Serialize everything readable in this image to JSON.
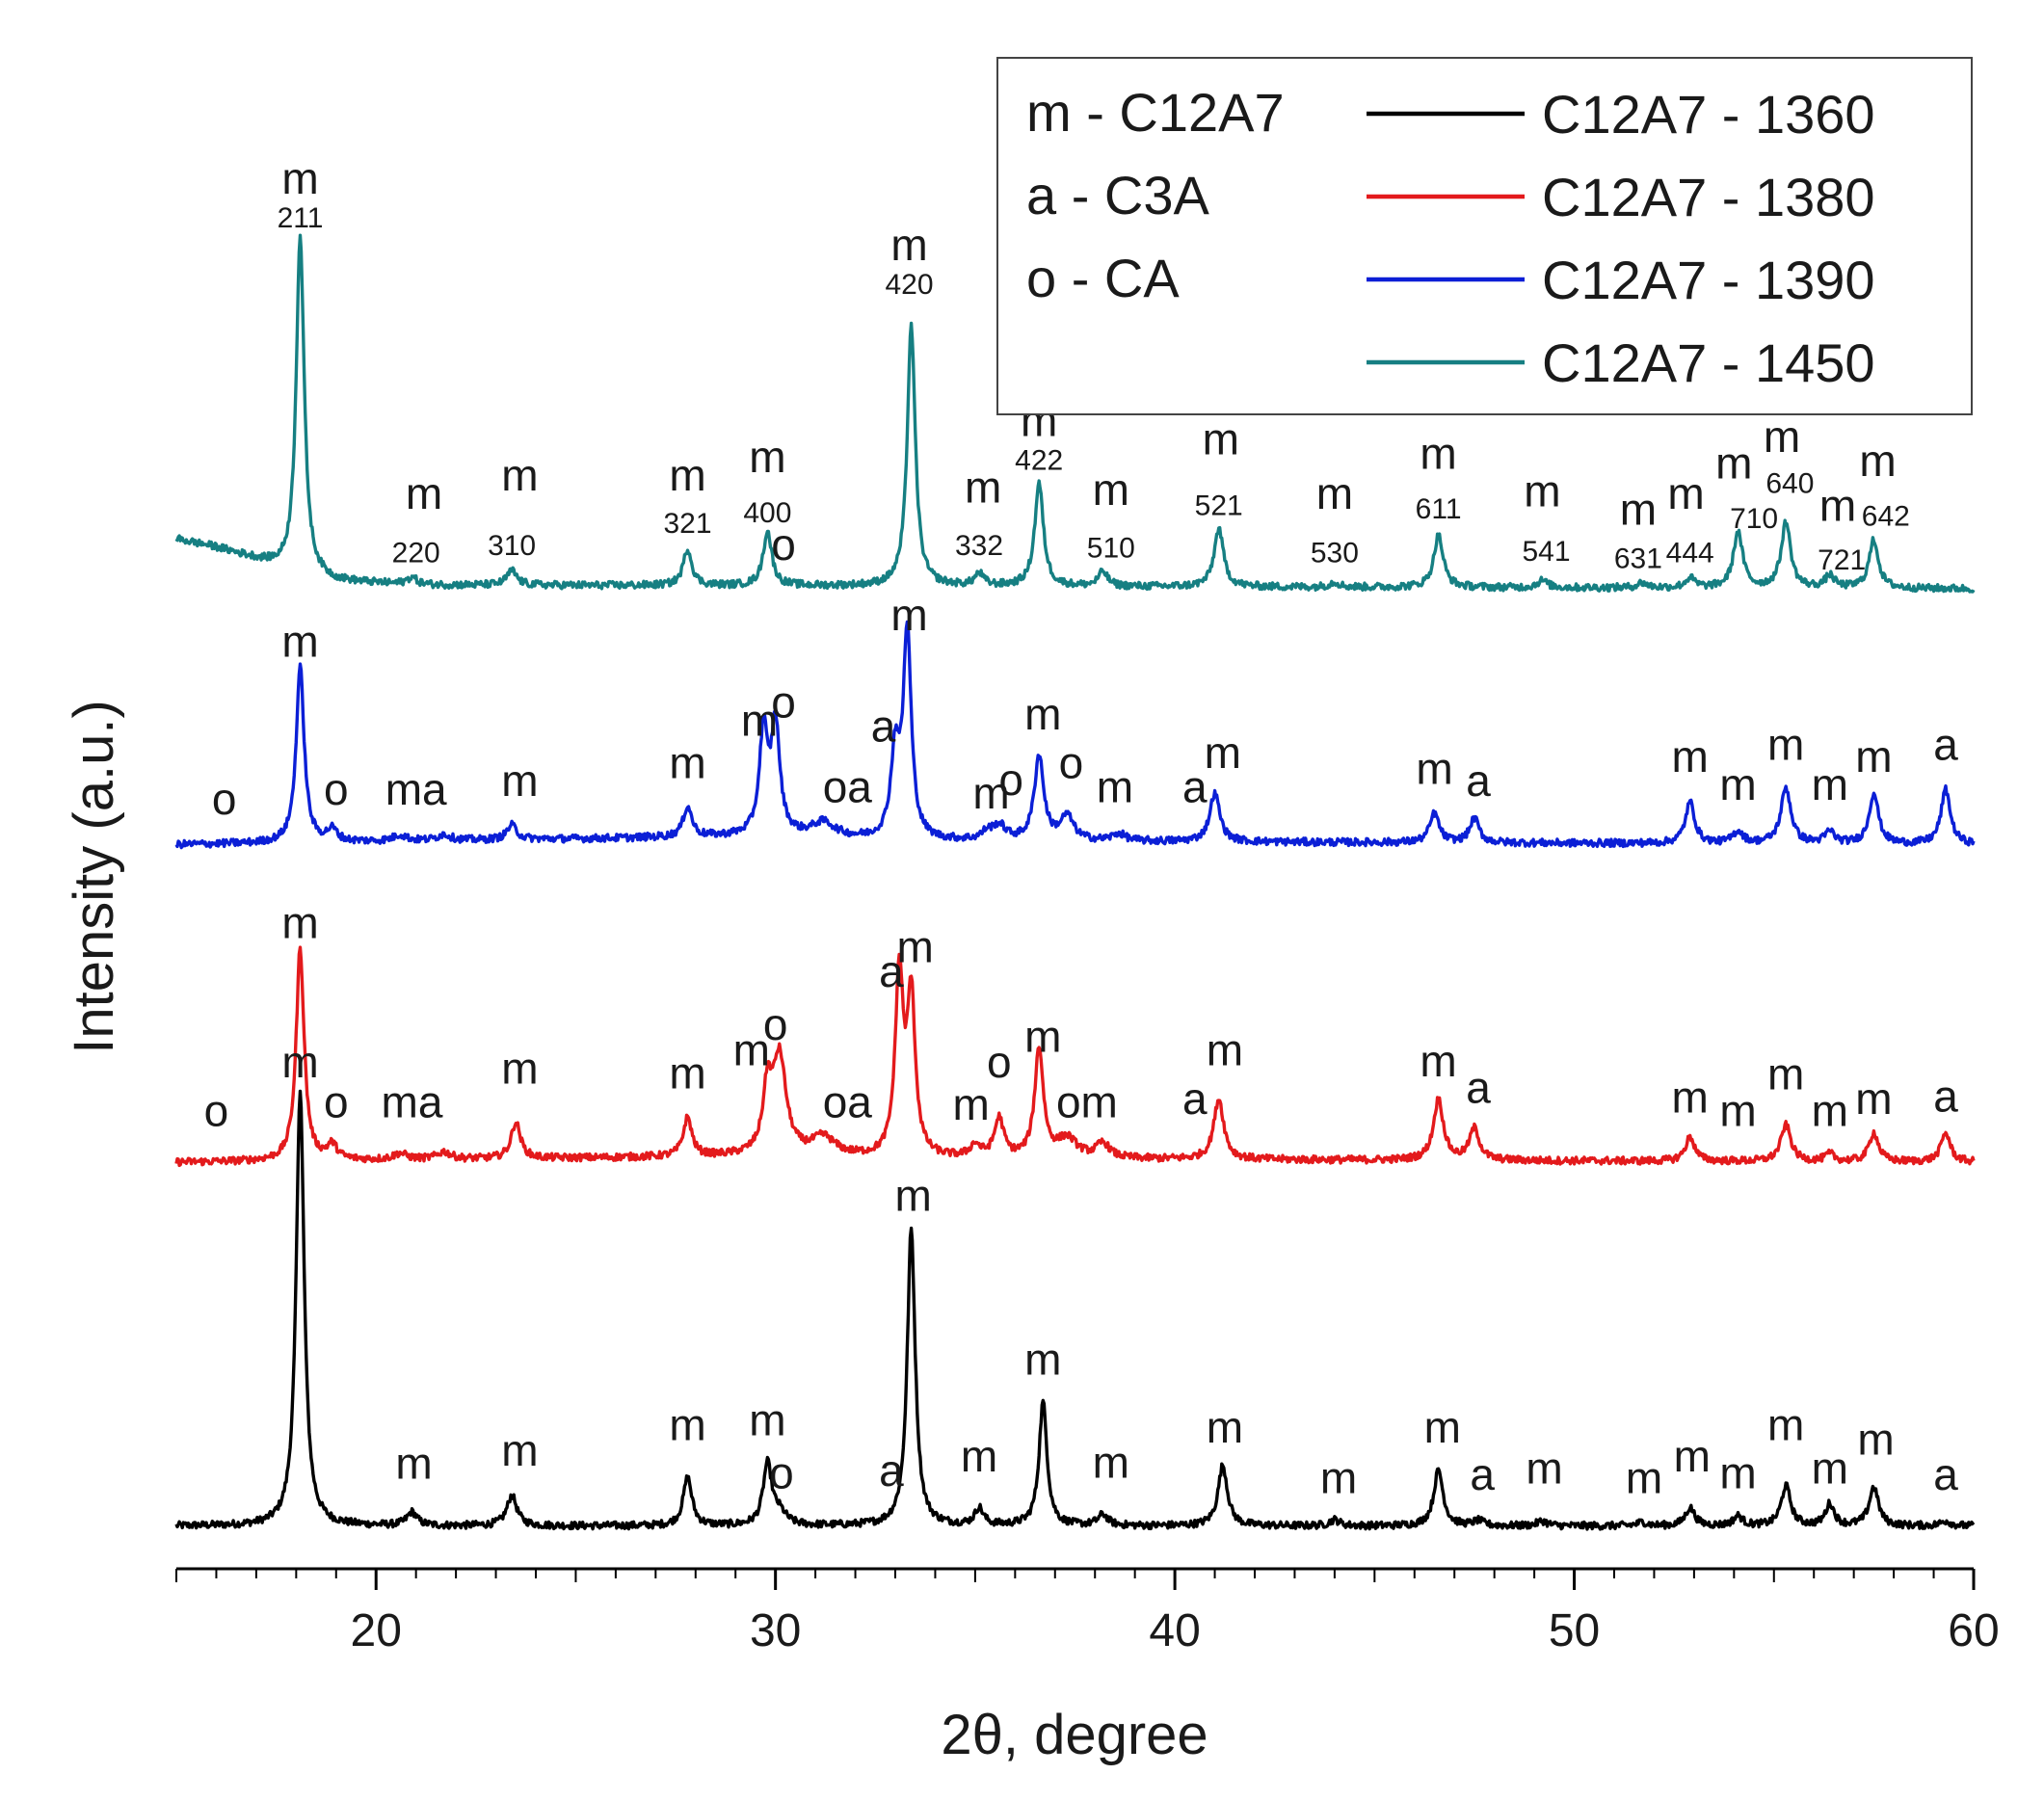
{
  "chart_data": {
    "type": "line",
    "title": "",
    "xlabel": "2θ, degree",
    "ylabel": "Intensity (a.u.)",
    "xlim": [
      15,
      60
    ],
    "x_ticks": [
      20,
      30,
      40,
      50,
      60
    ],
    "ylim": [
      0,
      1.2
    ],
    "grid": false,
    "legend_placement": "top-right",
    "phase_legend": [
      "m - C12A7",
      "a - C3A",
      "o - CA"
    ],
    "series": [
      {
        "name": "C12A7 - 1360",
        "color": "#000000",
        "offset": 0,
        "background": [
          [
            15,
            0.005
          ],
          [
            60,
            0.005
          ]
        ],
        "peaks": [
          [
            18.1,
            0.36,
            0.12
          ],
          [
            20.9,
            0.011,
            0.15
          ],
          [
            23.4,
            0.025,
            0.15
          ],
          [
            27.8,
            0.04,
            0.13
          ],
          [
            29.8,
            0.05,
            0.13
          ],
          [
            30.1,
            0.01,
            0.2
          ],
          [
            33.4,
            0.245,
            0.12
          ],
          [
            35.1,
            0.014,
            0.13
          ],
          [
            36.7,
            0.102,
            0.12
          ],
          [
            38.2,
            0.009,
            0.15
          ],
          [
            41.2,
            0.05,
            0.14
          ],
          [
            44.0,
            0.005,
            0.15
          ],
          [
            46.6,
            0.046,
            0.14
          ],
          [
            47.6,
            0.004,
            0.15
          ],
          [
            49.2,
            0.004,
            0.15
          ],
          [
            51.7,
            0.003,
            0.15
          ],
          [
            52.9,
            0.015,
            0.14
          ],
          [
            54.1,
            0.008,
            0.14
          ],
          [
            55.3,
            0.033,
            0.14
          ],
          [
            56.4,
            0.018,
            0.13
          ],
          [
            57.5,
            0.032,
            0.14
          ],
          [
            59.3,
            0.004,
            0.15
          ]
        ],
        "labels": [
          [
            "m",
            18.1,
            0.375
          ],
          [
            "m",
            20.95,
            0.044
          ],
          [
            "m",
            23.6,
            0.055
          ],
          [
            "m",
            27.8,
            0.076
          ],
          [
            "m",
            29.8,
            0.08
          ],
          [
            "o",
            30.15,
            0.036
          ],
          [
            "a",
            32.9,
            0.038
          ],
          [
            "m",
            33.45,
            0.265
          ],
          [
            "m",
            35.1,
            0.05
          ],
          [
            "m",
            36.7,
            0.13
          ],
          [
            "m",
            38.4,
            0.045
          ],
          [
            "m",
            41.25,
            0.074
          ],
          [
            "m",
            44.1,
            0.032
          ],
          [
            "m",
            46.7,
            0.074
          ],
          [
            "a",
            47.7,
            0.035
          ],
          [
            "m",
            49.25,
            0.04
          ],
          [
            "m",
            51.75,
            0.032
          ],
          [
            "m",
            52.95,
            0.05
          ],
          [
            "m",
            54.1,
            0.036
          ],
          [
            "m",
            55.3,
            0.076
          ],
          [
            "m",
            56.4,
            0.04
          ],
          [
            "m",
            57.55,
            0.064
          ],
          [
            "a",
            59.3,
            0.035
          ]
        ]
      },
      {
        "name": "C12A7 - 1380",
        "color": "#e31a1c",
        "offset": 0.3,
        "background": [
          [
            15,
            0.005
          ],
          [
            30,
            0.01
          ],
          [
            33,
            0.008
          ],
          [
            60,
            0.005
          ]
        ],
        "peaks": [
          [
            18.1,
            0.175,
            0.12
          ],
          [
            18.9,
            0.012,
            0.15
          ],
          [
            20.6,
            0.005,
            0.2
          ],
          [
            21.7,
            0.006,
            0.2
          ],
          [
            23.5,
            0.03,
            0.14
          ],
          [
            27.8,
            0.032,
            0.13
          ],
          [
            29.8,
            0.05,
            0.13
          ],
          [
            30.1,
            0.08,
            0.2
          ],
          [
            31.2,
            0.015,
            0.35
          ],
          [
            33.1,
            0.15,
            0.12
          ],
          [
            33.4,
            0.13,
            0.12
          ],
          [
            35.0,
            0.01,
            0.15
          ],
          [
            35.6,
            0.032,
            0.14
          ],
          [
            36.6,
            0.09,
            0.13
          ],
          [
            37.3,
            0.016,
            0.3
          ],
          [
            38.2,
            0.012,
            0.2
          ],
          [
            41.1,
            0.05,
            0.15
          ],
          [
            46.6,
            0.05,
            0.15
          ],
          [
            47.5,
            0.026,
            0.15
          ],
          [
            52.9,
            0.02,
            0.14
          ],
          [
            55.3,
            0.03,
            0.15
          ],
          [
            56.4,
            0.006,
            0.14
          ],
          [
            57.5,
            0.024,
            0.14
          ],
          [
            59.3,
            0.024,
            0.14
          ]
        ],
        "labels": [
          [
            "o",
            16.0,
            0.035
          ],
          [
            "m",
            18.1,
            0.19
          ],
          [
            "o",
            19.0,
            0.042
          ],
          [
            "ma",
            20.9,
            0.042
          ],
          [
            "m",
            23.6,
            0.07
          ],
          [
            "m",
            27.8,
            0.066
          ],
          [
            "m",
            29.4,
            0.085
          ],
          [
            "o",
            30.0,
            0.106
          ],
          [
            "oa",
            31.8,
            0.042
          ],
          [
            "a",
            32.9,
            0.15
          ],
          [
            "m",
            33.5,
            0.17
          ],
          [
            "m",
            34.9,
            0.04
          ],
          [
            "o",
            35.6,
            0.075
          ],
          [
            "m",
            36.7,
            0.096
          ],
          [
            "om",
            37.8,
            0.042
          ],
          [
            "a",
            40.5,
            0.045
          ],
          [
            "m",
            41.25,
            0.085
          ],
          [
            "m",
            46.6,
            0.076
          ],
          [
            "a",
            47.6,
            0.054
          ],
          [
            "m",
            52.9,
            0.046
          ],
          [
            "m",
            54.1,
            0.035
          ],
          [
            "m",
            55.3,
            0.065
          ],
          [
            "m",
            56.4,
            0.035
          ],
          [
            "m",
            57.5,
            0.045
          ],
          [
            "a",
            59.3,
            0.047
          ]
        ]
      },
      {
        "name": "C12A7 - 1390",
        "color": "#0b1fd6",
        "offset": 0.562,
        "background": [
          [
            15,
            0.005
          ],
          [
            30,
            0.012
          ],
          [
            33,
            0.008
          ],
          [
            60,
            0.005
          ]
        ],
        "peaks": [
          [
            18.1,
            0.145,
            0.12
          ],
          [
            18.9,
            0.01,
            0.15
          ],
          [
            20.6,
            0.005,
            0.2
          ],
          [
            21.7,
            0.005,
            0.2
          ],
          [
            23.4,
            0.012,
            0.15
          ],
          [
            27.8,
            0.025,
            0.13
          ],
          [
            29.7,
            0.085,
            0.12
          ],
          [
            30.0,
            0.09,
            0.13
          ],
          [
            31.2,
            0.012,
            0.35
          ],
          [
            33.0,
            0.07,
            0.13
          ],
          [
            33.3,
            0.17,
            0.12
          ],
          [
            35.3,
            0.006,
            0.15
          ],
          [
            35.6,
            0.012,
            0.2
          ],
          [
            36.6,
            0.07,
            0.14
          ],
          [
            37.3,
            0.02,
            0.2
          ],
          [
            38.6,
            0.006,
            0.2
          ],
          [
            41.0,
            0.04,
            0.15
          ],
          [
            46.5,
            0.024,
            0.14
          ],
          [
            47.5,
            0.02,
            0.14
          ],
          [
            52.9,
            0.034,
            0.14
          ],
          [
            54.1,
            0.01,
            0.15
          ],
          [
            55.3,
            0.046,
            0.15
          ],
          [
            56.4,
            0.01,
            0.14
          ],
          [
            57.5,
            0.042,
            0.14
          ],
          [
            59.3,
            0.045,
            0.14
          ]
        ],
        "labels": [
          [
            "o",
            16.2,
            0.03
          ],
          [
            "m",
            18.1,
            0.16
          ],
          [
            "o",
            19.0,
            0.038
          ],
          [
            "ma",
            21.0,
            0.038
          ],
          [
            "m",
            23.6,
            0.045
          ],
          [
            "m",
            27.8,
            0.06
          ],
          [
            "m",
            29.6,
            0.095
          ],
          [
            "o",
            30.2,
            0.11
          ],
          [
            "oa",
            31.8,
            0.04
          ],
          [
            "a",
            32.7,
            0.09
          ],
          [
            "m",
            33.35,
            0.182
          ],
          [
            "m",
            35.4,
            0.035
          ],
          [
            "o",
            35.9,
            0.046
          ],
          [
            "m",
            36.7,
            0.1
          ],
          [
            "o",
            37.4,
            0.06
          ],
          [
            "m",
            38.5,
            0.04
          ],
          [
            "a",
            40.5,
            0.04
          ],
          [
            "m",
            41.2,
            0.068
          ],
          [
            "m",
            46.5,
            0.055
          ],
          [
            "a",
            47.6,
            0.045
          ],
          [
            "m",
            52.9,
            0.065
          ],
          [
            "m",
            54.1,
            0.042
          ],
          [
            "m",
            55.3,
            0.075
          ],
          [
            "m",
            56.4,
            0.042
          ],
          [
            "m",
            57.5,
            0.065
          ],
          [
            "a",
            59.3,
            0.075
          ]
        ]
      },
      {
        "name": "C12A7 - 1450",
        "color": "#167f82",
        "offset": 0.774,
        "background": [
          [
            15,
            0.045
          ],
          [
            16,
            0.038
          ],
          [
            17,
            0.028
          ],
          [
            18,
            0.016
          ],
          [
            19,
            0.01
          ],
          [
            21,
            0.007
          ],
          [
            60,
            0.004
          ]
        ],
        "peaks": [
          [
            18.1,
            0.28,
            0.12
          ],
          [
            20.9,
            0.006,
            0.15
          ],
          [
            23.4,
            0.012,
            0.15
          ],
          [
            27.8,
            0.03,
            0.13
          ],
          [
            29.8,
            0.045,
            0.13
          ],
          [
            33.4,
            0.215,
            0.12
          ],
          [
            35.1,
            0.01,
            0.13
          ],
          [
            36.6,
            0.085,
            0.13
          ],
          [
            38.2,
            0.012,
            0.14
          ],
          [
            41.1,
            0.048,
            0.14
          ],
          [
            44.0,
            0.004,
            0.15
          ],
          [
            46.6,
            0.043,
            0.14
          ],
          [
            49.2,
            0.006,
            0.15
          ],
          [
            51.7,
            0.004,
            0.15
          ],
          [
            52.9,
            0.008,
            0.14
          ],
          [
            54.1,
            0.046,
            0.14
          ],
          [
            55.3,
            0.054,
            0.14
          ],
          [
            56.4,
            0.01,
            0.14
          ],
          [
            57.5,
            0.04,
            0.14
          ]
        ],
        "labels": [
          [
            "m",
            18.1,
            0.33
          ],
          [
            "m",
            21.2,
            0.07
          ],
          [
            "m",
            23.6,
            0.085
          ],
          [
            "m",
            27.8,
            0.085
          ],
          [
            "m",
            29.8,
            0.1
          ],
          [
            "o",
            30.2,
            0.028
          ],
          [
            "m",
            33.35,
            0.275
          ],
          [
            "m",
            35.2,
            0.075
          ],
          [
            "m",
            36.6,
            0.13
          ],
          [
            "m",
            38.4,
            0.073
          ],
          [
            "m",
            41.15,
            0.115
          ],
          [
            "m",
            44.0,
            0.07
          ],
          [
            "m",
            46.6,
            0.103
          ],
          [
            "m",
            49.2,
            0.072
          ],
          [
            "m",
            51.6,
            0.057
          ],
          [
            "m",
            52.8,
            0.07
          ],
          [
            "m",
            54.0,
            0.095
          ],
          [
            "m",
            55.2,
            0.117
          ],
          [
            "m",
            56.6,
            0.06
          ],
          [
            "m",
            57.6,
            0.097
          ]
        ],
        "hkl": [
          [
            "211",
            18.1,
            0.302
          ],
          [
            "220",
            21.0,
            0.026
          ],
          [
            "310",
            23.4,
            0.032
          ],
          [
            "321",
            27.8,
            0.05
          ],
          [
            "400",
            29.8,
            0.059
          ],
          [
            "420",
            33.35,
            0.247
          ],
          [
            "332",
            35.1,
            0.032
          ],
          [
            "422",
            36.6,
            0.102
          ],
          [
            "510",
            38.4,
            0.03
          ],
          [
            "521",
            41.1,
            0.065
          ],
          [
            "530",
            44.0,
            0.026
          ],
          [
            "611",
            46.6,
            0.062
          ],
          [
            "541",
            49.3,
            0.027
          ],
          [
            "631",
            51.6,
            0.021
          ],
          [
            "444",
            52.9,
            0.026
          ],
          [
            "710",
            54.5,
            0.054
          ],
          [
            "640",
            55.4,
            0.083
          ],
          [
            "721",
            56.7,
            0.02
          ],
          [
            "642",
            57.8,
            0.056
          ]
        ]
      }
    ]
  }
}
